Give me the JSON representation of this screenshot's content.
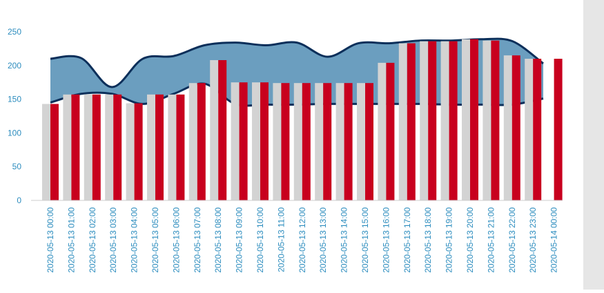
{
  "chart_data": {
    "type": "bar",
    "title": "",
    "xlabel": "",
    "ylabel": "",
    "ylim": [
      0,
      250
    ],
    "yticks": [
      0,
      50,
      100,
      150,
      200,
      250
    ],
    "grid": false,
    "legend": "none",
    "categories": [
      "2020-05-13 00:00",
      "2020-05-13 01:00",
      "2020-05-13 02:00",
      "2020-05-13 03:00",
      "2020-05-13 04:00",
      "2020-05-13 05:00",
      "2020-05-13 06:00",
      "2020-05-13 07:00",
      "2020-05-13 08:00",
      "2020-05-13 09:00",
      "2020-05-13 10:00",
      "2020-05-13 11:00",
      "2020-05-13 12:00",
      "2020-05-13 13:00",
      "2020-05-13 14:00",
      "2020-05-13 15:00",
      "2020-05-13 16:00",
      "2020-05-13 17:00",
      "2020-05-13 18:00",
      "2020-05-13 19:00",
      "2020-05-13 20:00",
      "2020-05-13 21:00",
      "2020-05-13 22:00",
      "2020-05-13 23:00",
      "2020-05-14 00:00"
    ],
    "series": [
      {
        "color": "#d3d3d3",
        "values": [
          143,
          157,
          157,
          157,
          144,
          157,
          157,
          174,
          208,
          175,
          175,
          174,
          174,
          174,
          174,
          174,
          204,
          233,
          236,
          236,
          239,
          237,
          215,
          210,
          null
        ]
      },
      {
        "color": "#c8001e",
        "values": [
          143,
          157,
          157,
          157,
          144,
          157,
          157,
          174,
          208,
          175,
          175,
          174,
          174,
          174,
          174,
          174,
          204,
          233,
          236,
          236,
          239,
          237,
          215,
          210,
          210
        ]
      }
    ],
    "band": {
      "fill": "#5b93b8",
      "stroke": "#0c2f5a",
      "upper": [
        210,
        211,
        168,
        210,
        214,
        230,
        234,
        230,
        234,
        213,
        233,
        233,
        237,
        237,
        239,
        236,
        203
      ],
      "lower": [
        145,
        158,
        158,
        143,
        158,
        173,
        143,
        142,
        142,
        143,
        143,
        143,
        143,
        142,
        142,
        142,
        151
      ]
    },
    "colors": {
      "axis_tick_text": "#2b8cbe",
      "axis_line": "#cccccc",
      "side_panel": "#e6e6e6"
    }
  }
}
